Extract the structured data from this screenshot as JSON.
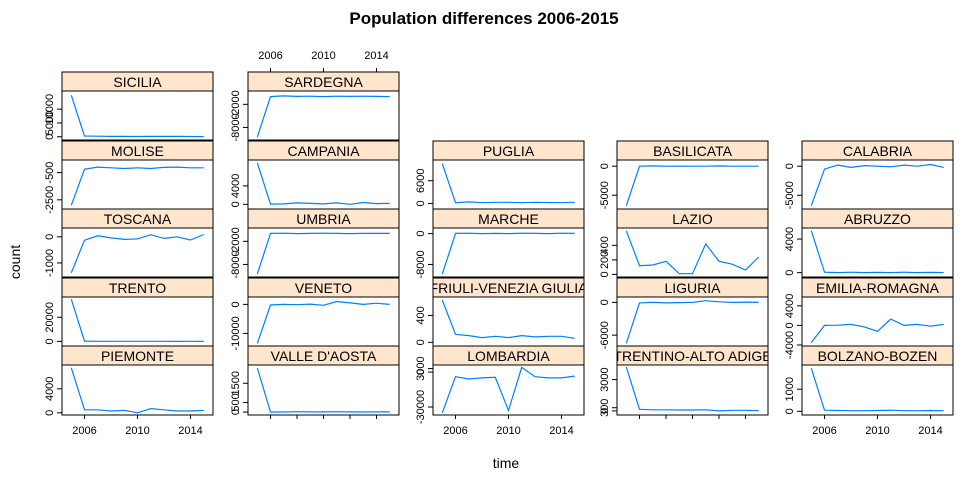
{
  "chart_data": {
    "type": "line",
    "title": "Population differences 2006-2015",
    "xlabel": "time",
    "ylabel": "count",
    "x": [
      2005,
      2006,
      2007,
      2008,
      2009,
      2010,
      2011,
      2012,
      2013,
      2014,
      2015
    ],
    "xlim": [
      2004.3,
      2015.7
    ],
    "x_ticks": [
      2006,
      2010,
      2014
    ],
    "x_tick_labels": [
      "2006",
      "2010",
      "2014"
    ],
    "line_color": "#0080ff",
    "strip_color": "#ffe5cc",
    "layout": "lattice 5x5 grid, dropped empty cells",
    "panels": [
      {
        "name": "SICILIA",
        "col": 0,
        "row": 0,
        "ylim": [
          -800,
          16200
        ],
        "yticks": [
          0,
          5000,
          10000
        ],
        "ytick_labels": [
          "0",
          "5000",
          "10000"
        ],
        "values": [
          15000,
          300,
          200,
          150,
          150,
          120,
          130,
          150,
          140,
          100,
          80
        ]
      },
      {
        "name": "SARDEGNA",
        "col": 1,
        "row": 0,
        "ylim": [
          -11000,
          1200
        ],
        "yticks": [
          -8000,
          -2000
        ],
        "ytick_labels": [
          "-8000",
          "-2000"
        ],
        "values": [
          -10500,
          0,
          200,
          50,
          100,
          0,
          100,
          50,
          100,
          50,
          0
        ]
      },
      {
        "name": "MOLISE",
        "col": 0,
        "row": 1,
        "ylim": [
          -3100,
          350
        ],
        "yticks": [
          -2500,
          -500
        ],
        "ytick_labels": [
          "-2500",
          "-500"
        ],
        "values": [
          -2900,
          -250,
          -100,
          -150,
          -200,
          -150,
          -200,
          -120,
          -100,
          -150,
          -150
        ]
      },
      {
        "name": "CAMPANIA",
        "col": 1,
        "row": 1,
        "ylim": [
          -800,
          9400
        ],
        "yticks": [
          0,
          4000
        ],
        "ytick_labels": [
          "0",
          "4000"
        ],
        "values": [
          9000,
          50,
          100,
          300,
          200,
          100,
          300,
          0,
          400,
          150,
          200
        ]
      },
      {
        "name": "PUGLIA",
        "col": 2,
        "row": 1,
        "ylim": [
          -1200,
          11200
        ],
        "yticks": [
          0,
          6000
        ],
        "ytick_labels": [
          "0",
          "6000"
        ],
        "values": [
          10500,
          200,
          400,
          200,
          300,
          300,
          200,
          300,
          250,
          200,
          300
        ]
      },
      {
        "name": "BASILICATA",
        "col": 3,
        "row": 1,
        "ylim": [
          -7200,
          900
        ],
        "yticks": [
          -5000,
          0
        ],
        "ytick_labels": [
          "-5000",
          "0"
        ],
        "values": [
          -6800,
          0,
          50,
          0,
          20,
          0,
          0,
          50,
          0,
          0,
          0
        ]
      },
      {
        "name": "CALABRIA",
        "col": 4,
        "row": 1,
        "ylim": [
          -7200,
          900
        ],
        "yticks": [
          -5000,
          0
        ],
        "ytick_labels": [
          "-5000",
          "0"
        ],
        "values": [
          -6800,
          -500,
          200,
          -200,
          100,
          0,
          -100,
          200,
          0,
          300,
          -200
        ]
      },
      {
        "name": "TOSCANA",
        "col": 0,
        "row": 2,
        "ylim": [
          -1500,
          300
        ],
        "yticks": [
          -1000,
          0
        ],
        "ytick_labels": [
          "-1000",
          "0"
        ],
        "values": [
          -1380,
          -130,
          40,
          -40,
          -100,
          -80,
          80,
          -60,
          0,
          -120,
          90
        ]
      },
      {
        "name": "UMBRIA",
        "col": 1,
        "row": 2,
        "ylim": [
          -11000,
          1200
        ],
        "yticks": [
          -8000,
          -2000
        ],
        "ytick_labels": [
          "-8000",
          "-2000"
        ],
        "values": [
          -10500,
          50,
          100,
          0,
          50,
          100,
          50,
          0,
          50,
          50,
          50
        ]
      },
      {
        "name": "MARCHE",
        "col": 2,
        "row": 2,
        "ylim": [
          -11000,
          1200
        ],
        "yticks": [
          -8000,
          0
        ],
        "ytick_labels": [
          "-8000",
          "0"
        ],
        "values": [
          -10500,
          50,
          100,
          0,
          50,
          0,
          100,
          50,
          0,
          100,
          50
        ]
      },
      {
        "name": "LAZIO",
        "col": 3,
        "row": 2,
        "ylim": [
          -22,
          625
        ],
        "yticks": [
          0,
          200,
          400
        ],
        "ytick_labels": [
          "0",
          "200",
          "400"
        ],
        "values": [
          600,
          120,
          130,
          180,
          10,
          10,
          420,
          180,
          140,
          60,
          240
        ]
      },
      {
        "name": "ABRUZZO",
        "col": 4,
        "row": 2,
        "ylim": [
          -400,
          5200
        ],
        "yticks": [
          0,
          4000
        ],
        "ytick_labels": [
          "0",
          "4000"
        ],
        "values": [
          5000,
          50,
          0,
          50,
          0,
          30,
          0,
          50,
          0,
          30,
          0
        ]
      },
      {
        "name": "TRENTO",
        "col": 0,
        "row": 3,
        "ylim": [
          -3000,
          36000
        ],
        "yticks": [
          0,
          20000
        ],
        "ytick_labels": [
          "0",
          "20000"
        ],
        "values": [
          35000,
          200,
          100,
          100,
          100,
          50,
          50,
          100,
          0,
          50,
          0
        ]
      },
      {
        "name": "VENETO",
        "col": 1,
        "row": 3,
        "ylim": [
          -14000,
          2200
        ],
        "yticks": [
          -10000,
          0
        ],
        "ytick_labels": [
          "-10000",
          "0"
        ],
        "values": [
          -13500,
          -200,
          0,
          -100,
          100,
          -300,
          1000,
          500,
          0,
          400,
          0
        ]
      },
      {
        "name": "FRIULI-VENEZIA GIULIA",
        "col": 2,
        "row": 3,
        "ylim": [
          -40,
          660
        ],
        "yticks": [
          0,
          400
        ],
        "ytick_labels": [
          "0",
          "400"
        ],
        "values": [
          630,
          120,
          100,
          70,
          90,
          70,
          100,
          80,
          90,
          90,
          60
        ]
      },
      {
        "name": "LIGURIA",
        "col": 3,
        "row": 3,
        "ylim": [
          -7800,
          800
        ],
        "yticks": [
          -6000,
          0
        ],
        "ytick_labels": [
          "-6000",
          "0"
        ],
        "values": [
          -7500,
          -100,
          0,
          -100,
          -50,
          0,
          300,
          100,
          0,
          50,
          0
        ]
      },
      {
        "name": "EMILIA-ROMAGNA",
        "col": 4,
        "row": 3,
        "ylim": [
          -4000,
          5600
        ],
        "yticks": [
          -4000,
          0,
          4000
        ],
        "ytick_labels": [
          "-4000",
          "0",
          "4000"
        ],
        "values": [
          -3500,
          0,
          50,
          200,
          -300,
          -1200,
          1300,
          0,
          200,
          -150,
          200
        ]
      },
      {
        "name": "PIEMONTE",
        "col": 0,
        "row": 4,
        "ylim": [
          -200,
          7800
        ],
        "yticks": [
          0,
          4000
        ],
        "ytick_labels": [
          "0",
          "4000"
        ],
        "values": [
          7500,
          500,
          500,
          300,
          400,
          0,
          700,
          500,
          300,
          300,
          400
        ]
      },
      {
        "name": "VALLE D'AOSTA",
        "col": 1,
        "row": 4,
        "ylim": [
          -100,
          2400
        ],
        "yticks": [
          0,
          500,
          1500
        ],
        "ytick_labels": [
          "0",
          "500",
          "1500"
        ],
        "values": [
          2300,
          5,
          5,
          20,
          10,
          10,
          20,
          10,
          5,
          10,
          10
        ]
      },
      {
        "name": "LOMBARDIA",
        "col": 2,
        "row": 4,
        "ylim": [
          -36000,
          5200
        ],
        "yticks": [
          -30000,
          0,
          3000
        ],
        "ytick_labels": [
          "-30000",
          "0",
          "3000"
        ],
        "values": [
          -35000,
          -4000,
          -6000,
          -5000,
          -4500,
          -33000,
          4000,
          -4000,
          -5000,
          -5000,
          -3500
        ]
      },
      {
        "name": "TRENTINO-ALTO ADIGE",
        "col": 3,
        "row": 4,
        "ylim": [
          -300,
          4300
        ],
        "yticks": [
          0,
          300,
          3000
        ],
        "ytick_labels": [
          "0",
          "300",
          "3000"
        ],
        "values": [
          4200,
          150,
          100,
          100,
          80,
          80,
          100,
          0,
          50,
          50,
          30
        ]
      },
      {
        "name": "BOLZANO-BOZEN",
        "col": 4,
        "row": 4,
        "ylim": [
          -120,
          2050
        ],
        "yticks": [
          0,
          1000
        ],
        "ytick_labels": [
          "0",
          "1000"
        ],
        "values": [
          1950,
          50,
          40,
          30,
          30,
          40,
          50,
          30,
          30,
          40,
          30
        ]
      }
    ],
    "top_axis_panel": "SARDEGNA",
    "bottom_axis_panels": [
      "PIEMONTE",
      "LOMBARDIA",
      "BOLZANO-BOZEN"
    ],
    "grid": false,
    "legend": "none"
  }
}
